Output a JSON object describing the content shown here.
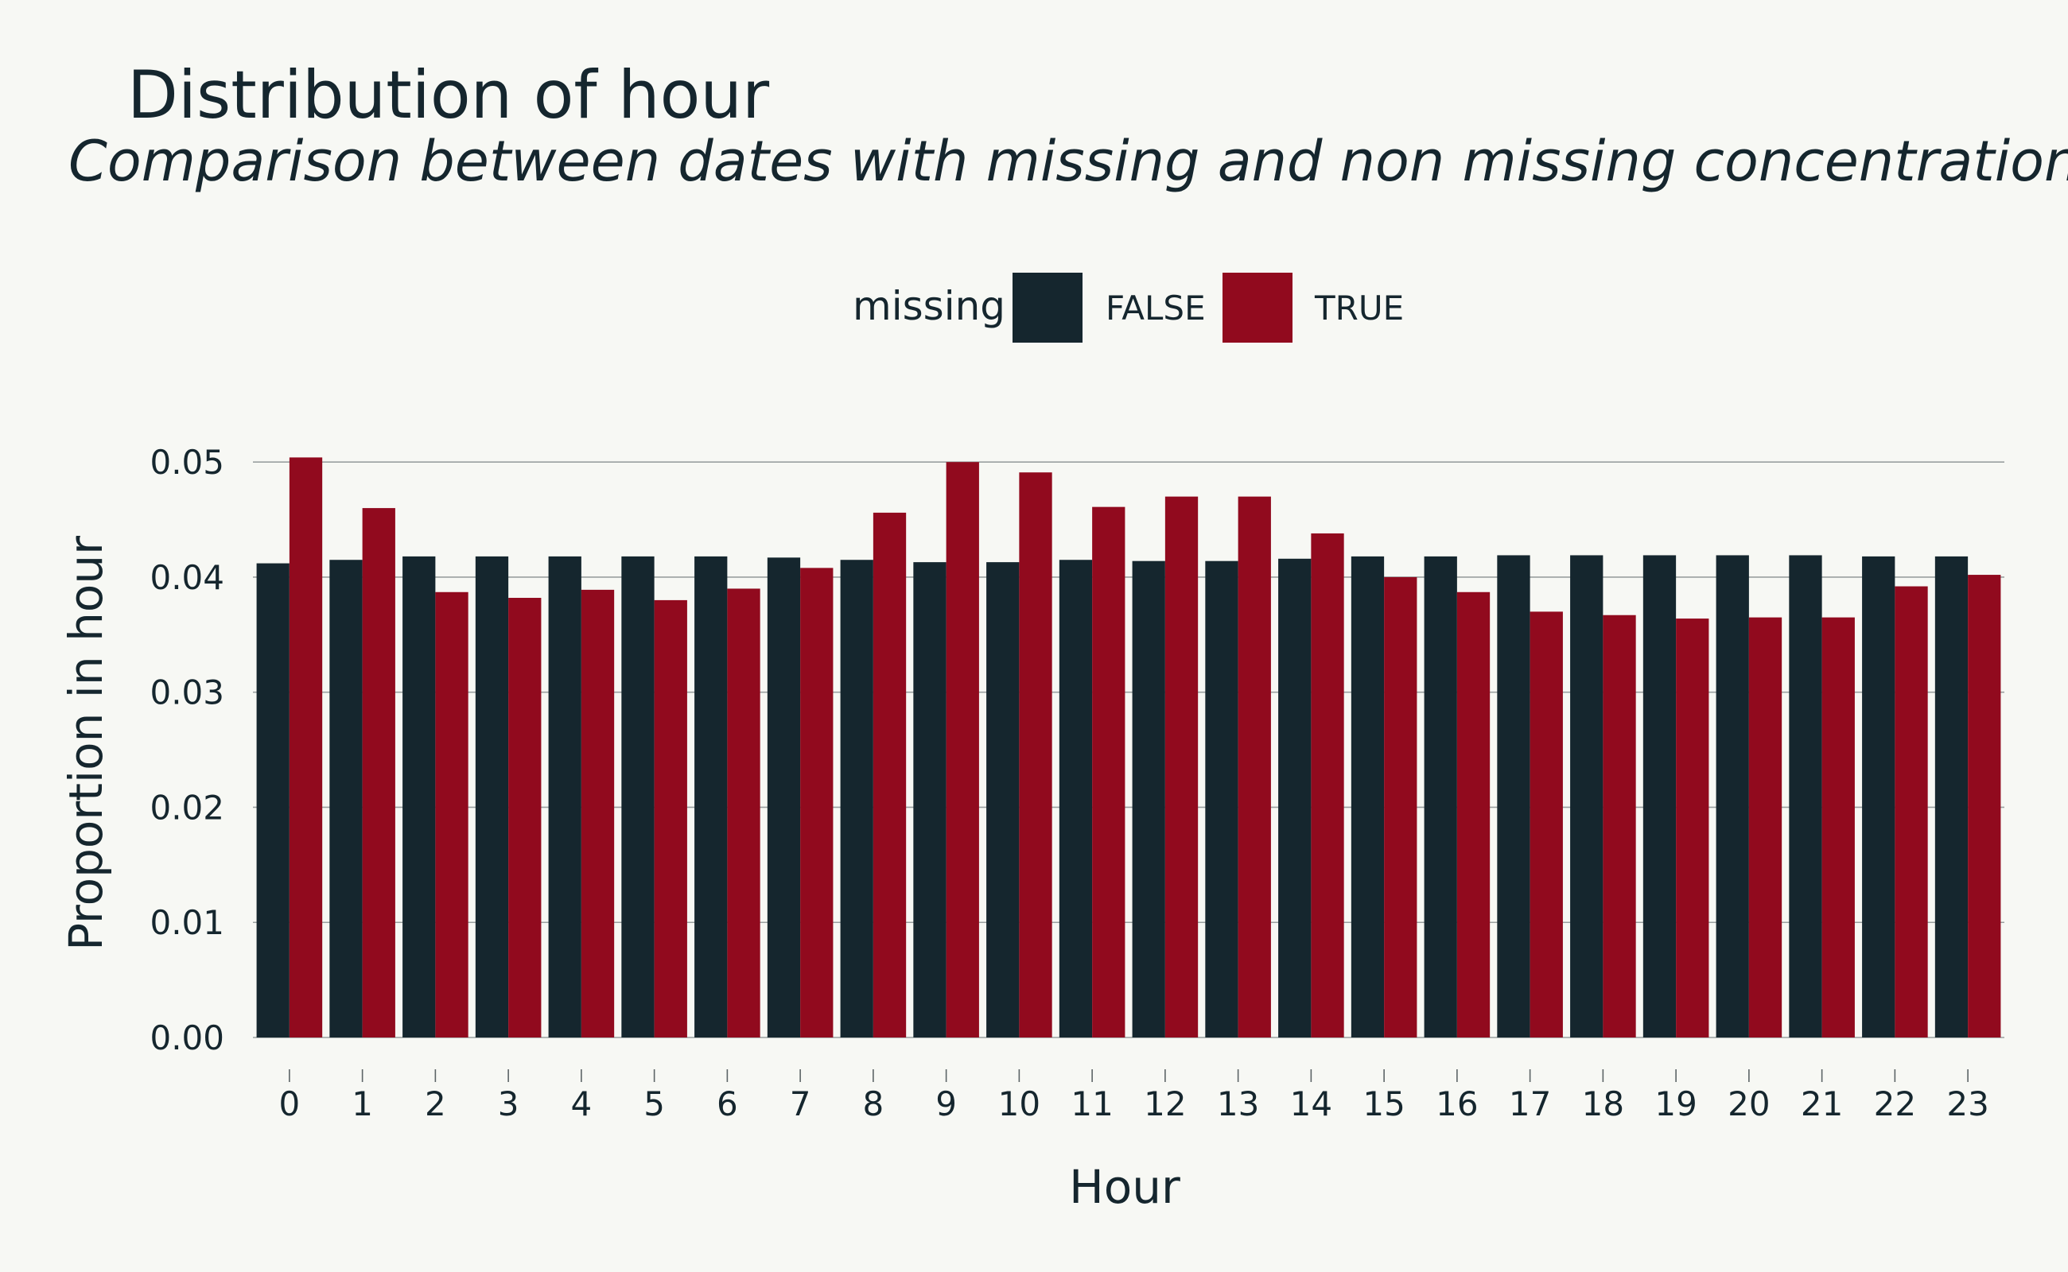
{
  "chart_data": {
    "type": "bar",
    "title": "Distribution of hour",
    "subtitle": "Comparison between dates with missing and non missing concentrations",
    "xlabel": "Hour",
    "ylabel": "Proportion in hour",
    "legend": {
      "title": "missing",
      "placement": "top"
    },
    "categories": [
      "0",
      "1",
      "2",
      "3",
      "4",
      "5",
      "6",
      "7",
      "8",
      "9",
      "10",
      "11",
      "12",
      "13",
      "14",
      "15",
      "16",
      "17",
      "18",
      "19",
      "20",
      "21",
      "22",
      "23"
    ],
    "yticks": [
      "0.00",
      "0.01",
      "0.02",
      "0.03",
      "0.04",
      "0.05"
    ],
    "ylim": [
      0,
      0.0525
    ],
    "grid": true,
    "series": [
      {
        "name": "FALSE",
        "color": "#15262e",
        "values": [
          0.0412,
          0.0415,
          0.0418,
          0.0418,
          0.0418,
          0.0418,
          0.0418,
          0.0417,
          0.0415,
          0.0413,
          0.0413,
          0.0415,
          0.0414,
          0.0414,
          0.0416,
          0.0418,
          0.0418,
          0.0419,
          0.0419,
          0.0419,
          0.0419,
          0.0419,
          0.0418,
          0.0418
        ]
      },
      {
        "name": "TRUE",
        "color": "#910a1e",
        "values": [
          0.0504,
          0.046,
          0.0387,
          0.0382,
          0.0389,
          0.038,
          0.039,
          0.0408,
          0.0456,
          0.05,
          0.0491,
          0.0461,
          0.047,
          0.047,
          0.0438,
          0.04,
          0.0387,
          0.037,
          0.0367,
          0.0364,
          0.0365,
          0.0365,
          0.0392,
          0.0402
        ]
      }
    ]
  }
}
